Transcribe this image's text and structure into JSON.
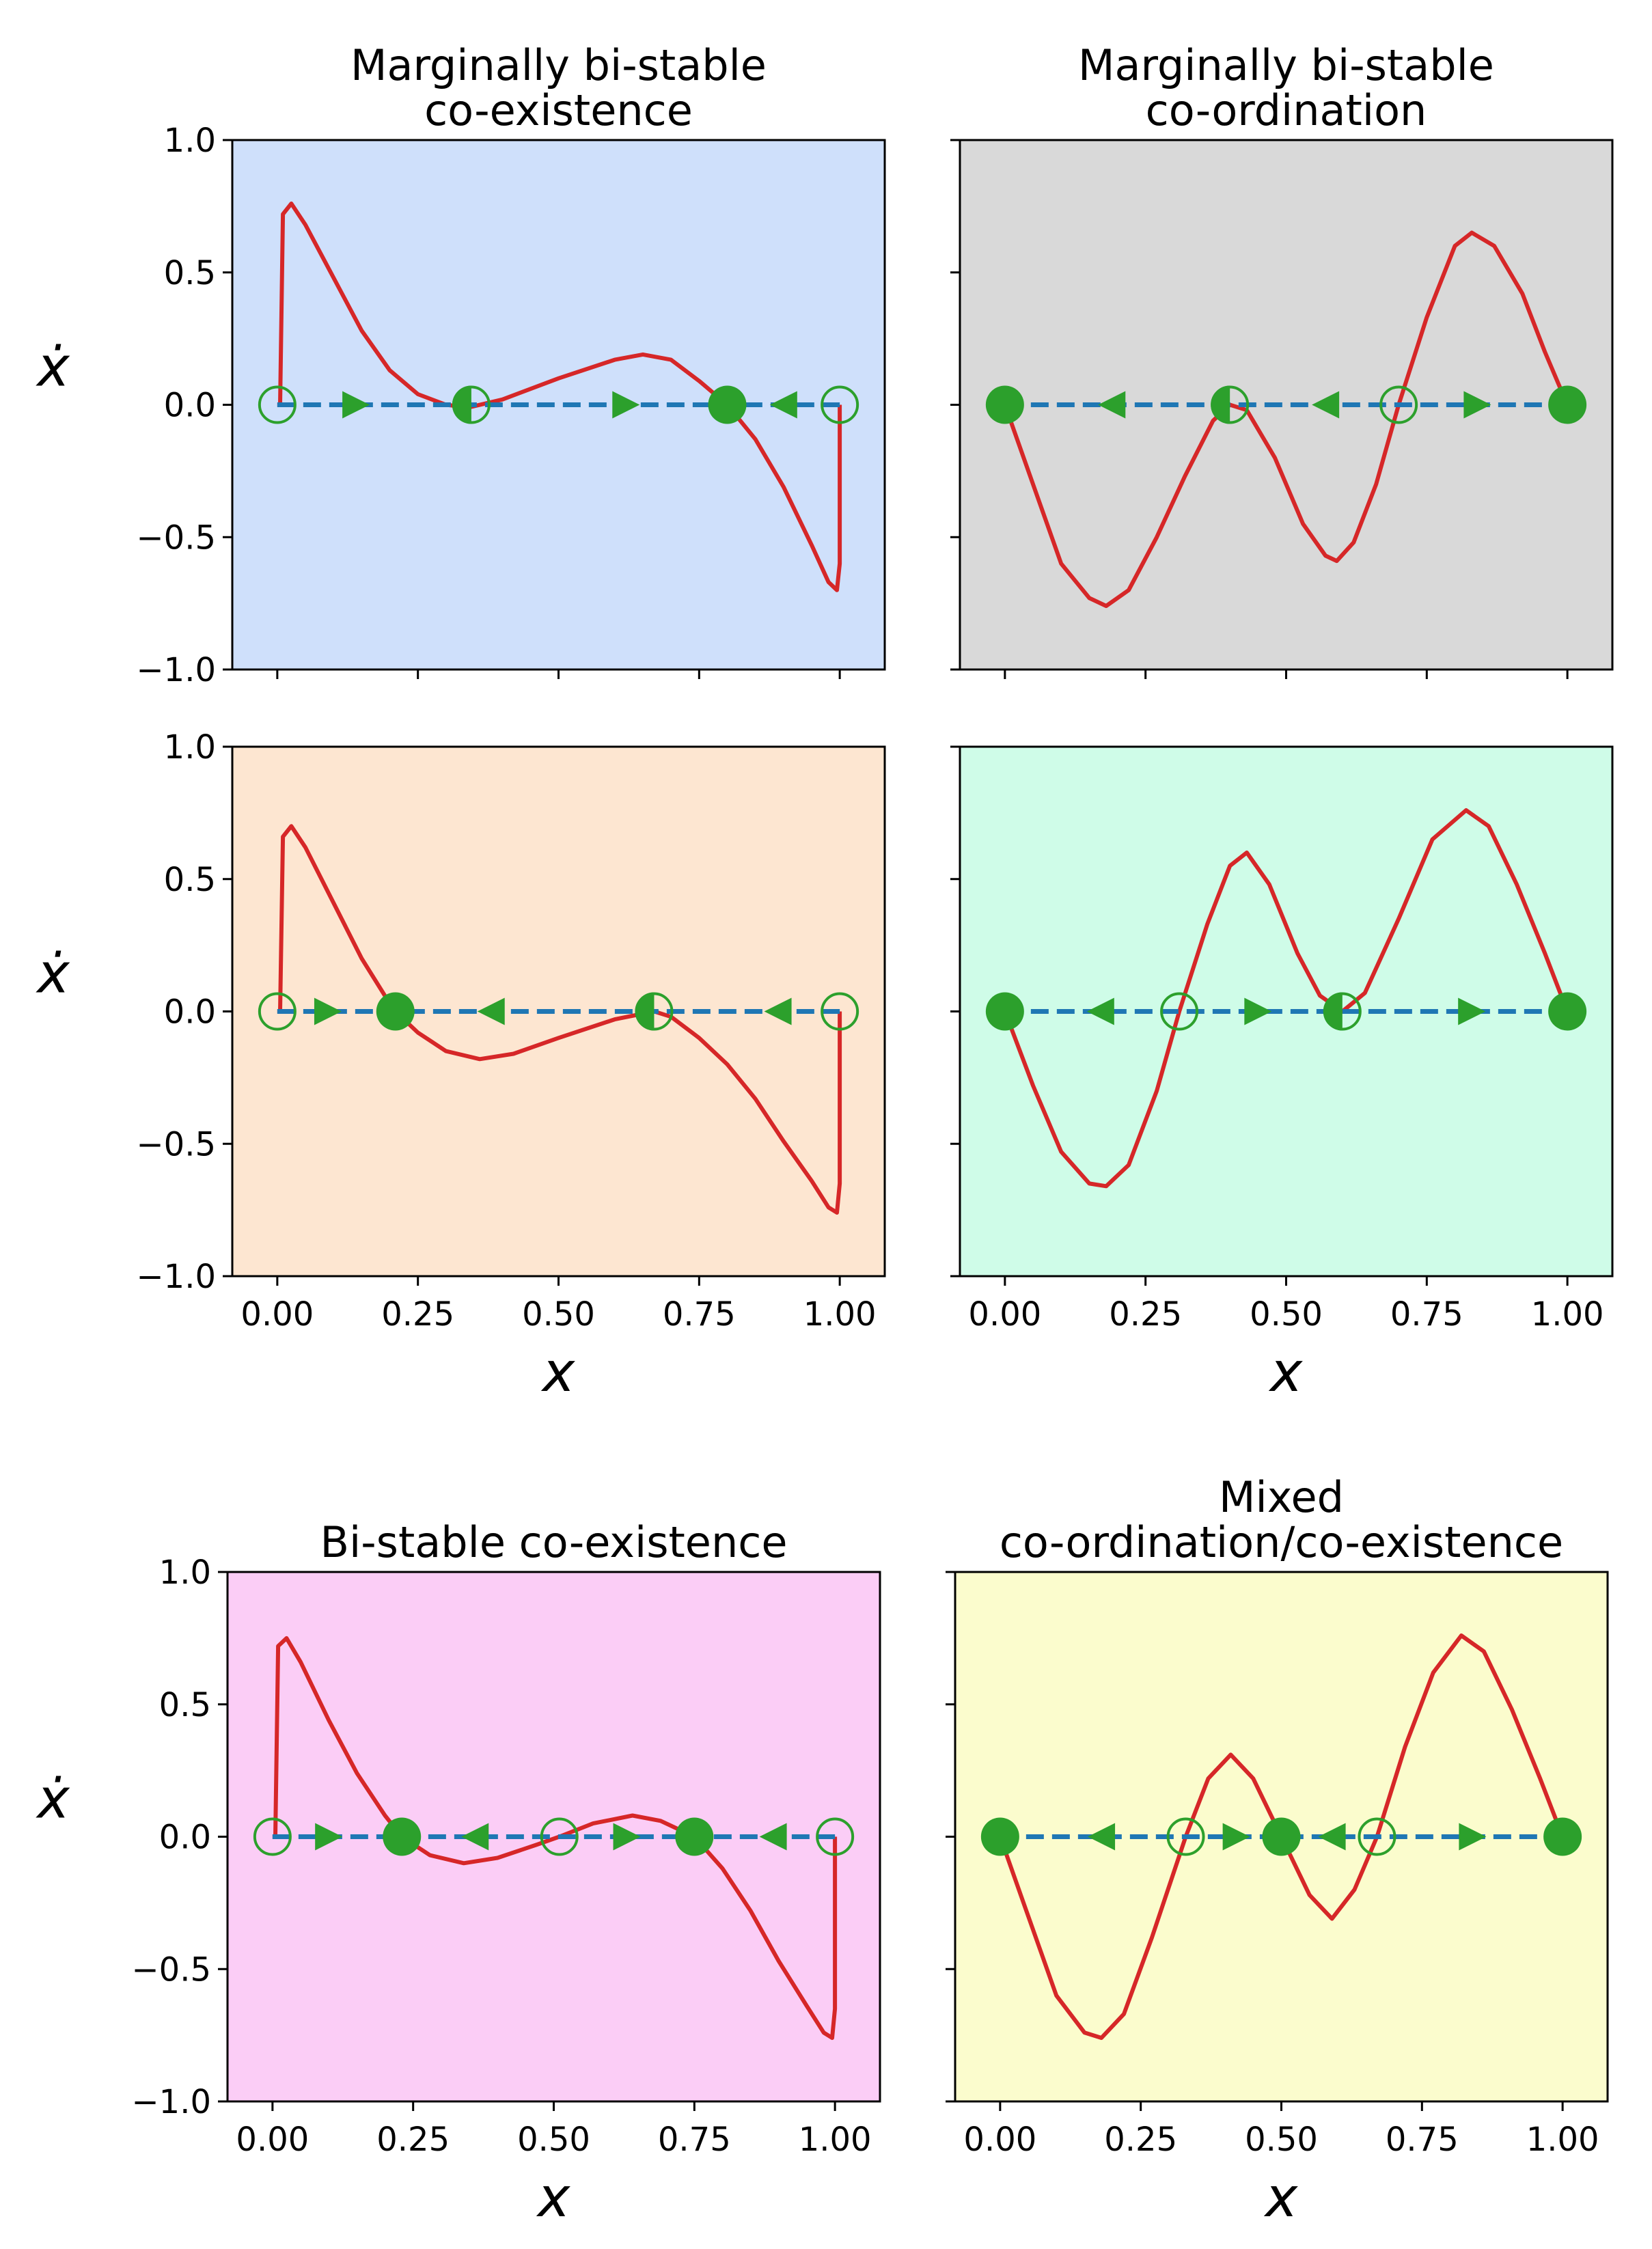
{
  "figure": {
    "description_type": "grid of phase-line plots",
    "colors": {
      "curve": "#d62728",
      "phase_line": "#1f77b4",
      "markers": "#2ca02c",
      "axes": "#000000"
    }
  },
  "chart_data": [
    {
      "type": "line",
      "title": "Marginally bi-stable\nco-existence",
      "title_lines": [
        "Marginally bi-stable",
        "co-existence"
      ],
      "background": "#cfe0fb",
      "xlabel": "",
      "ylabel": "ẋ",
      "xlim": [
        -0.08,
        1.08
      ],
      "ylim": [
        -1.0,
        1.0
      ],
      "xticks": [
        0.0,
        0.25,
        0.5,
        0.75,
        1.0
      ],
      "xtick_labels_visible": false,
      "yticks": [
        -1.0,
        -0.5,
        0.0,
        0.5,
        1.0
      ],
      "ytick_labels": [
        "−1.0",
        "−0.5",
        "0.0",
        "0.5",
        "1.0"
      ],
      "ytick_labels_visible": true,
      "curve": {
        "points": [
          [
            0.0,
            0.0
          ],
          [
            0.005,
            0.0
          ],
          [
            0.01,
            0.72
          ],
          [
            0.025,
            0.76
          ],
          [
            0.05,
            0.68
          ],
          [
            0.1,
            0.48
          ],
          [
            0.15,
            0.28
          ],
          [
            0.2,
            0.13
          ],
          [
            0.25,
            0.04
          ],
          [
            0.3,
            0.0
          ],
          [
            0.34,
            -0.01
          ],
          [
            0.4,
            0.02
          ],
          [
            0.5,
            0.1
          ],
          [
            0.6,
            0.17
          ],
          [
            0.65,
            0.19
          ],
          [
            0.7,
            0.17
          ],
          [
            0.75,
            0.09
          ],
          [
            0.8,
            0.0
          ],
          [
            0.85,
            -0.13
          ],
          [
            0.9,
            -0.31
          ],
          [
            0.95,
            -0.53
          ],
          [
            0.98,
            -0.67
          ],
          [
            0.995,
            -0.7
          ],
          [
            1.0,
            -0.6
          ],
          [
            1.0,
            0.0
          ]
        ]
      },
      "fixed_points": [
        {
          "x": 0.0,
          "style": "open"
        },
        {
          "x": 0.345,
          "style": "half"
        },
        {
          "x": 0.8,
          "style": "filled"
        },
        {
          "x": 1.0,
          "style": "open"
        }
      ],
      "arrows": [
        {
          "x": 0.14,
          "direction": "right"
        },
        {
          "x": 0.62,
          "direction": "right"
        },
        {
          "x": 0.9,
          "direction": "left"
        }
      ]
    },
    {
      "type": "line",
      "title": "Marginally bi-stable\nco-ordination",
      "title_lines": [
        "Marginally bi-stable",
        "co-ordination"
      ],
      "background": "#d9d9d9",
      "xlabel": "",
      "ylabel": "",
      "xlim": [
        -0.08,
        1.08
      ],
      "ylim": [
        -1.0,
        1.0
      ],
      "xticks": [
        0.0,
        0.25,
        0.5,
        0.75,
        1.0
      ],
      "xtick_labels_visible": false,
      "yticks": [
        -1.0,
        -0.5,
        0.0,
        0.5,
        1.0
      ],
      "ytick_labels_visible": false,
      "curve": {
        "points": [
          [
            0.0,
            0.0
          ],
          [
            0.05,
            -0.3
          ],
          [
            0.1,
            -0.6
          ],
          [
            0.15,
            -0.73
          ],
          [
            0.18,
            -0.76
          ],
          [
            0.22,
            -0.7
          ],
          [
            0.27,
            -0.5
          ],
          [
            0.32,
            -0.27
          ],
          [
            0.37,
            -0.06
          ],
          [
            0.4,
            0.0
          ],
          [
            0.43,
            -0.02
          ],
          [
            0.48,
            -0.2
          ],
          [
            0.53,
            -0.45
          ],
          [
            0.57,
            -0.57
          ],
          [
            0.59,
            -0.59
          ],
          [
            0.62,
            -0.52
          ],
          [
            0.66,
            -0.3
          ],
          [
            0.7,
            0.0
          ],
          [
            0.75,
            0.33
          ],
          [
            0.8,
            0.6
          ],
          [
            0.83,
            0.65
          ],
          [
            0.87,
            0.6
          ],
          [
            0.92,
            0.42
          ],
          [
            0.96,
            0.2
          ],
          [
            1.0,
            0.0
          ]
        ]
      },
      "fixed_points": [
        {
          "x": 0.0,
          "style": "filled"
        },
        {
          "x": 0.4,
          "style": "half"
        },
        {
          "x": 0.7,
          "style": "open"
        },
        {
          "x": 1.0,
          "style": "filled"
        }
      ],
      "arrows": [
        {
          "x": 0.19,
          "direction": "left"
        },
        {
          "x": 0.57,
          "direction": "left"
        },
        {
          "x": 0.84,
          "direction": "right"
        }
      ]
    },
    {
      "type": "line",
      "title": "",
      "title_lines": [],
      "background": "#fde6d1",
      "xlabel": "x",
      "ylabel": "ẋ",
      "xlim": [
        -0.08,
        1.08
      ],
      "ylim": [
        -1.0,
        1.0
      ],
      "xticks": [
        0.0,
        0.25,
        0.5,
        0.75,
        1.0
      ],
      "xtick_labels": [
        "0.00",
        "0.25",
        "0.50",
        "0.75",
        "1.00"
      ],
      "xtick_labels_visible": true,
      "yticks": [
        -1.0,
        -0.5,
        0.0,
        0.5,
        1.0
      ],
      "ytick_labels": [
        "−1.0",
        "−0.5",
        "0.0",
        "0.5",
        "1.0"
      ],
      "ytick_labels_visible": true,
      "curve": {
        "points": [
          [
            0.0,
            0.0
          ],
          [
            0.005,
            0.0
          ],
          [
            0.01,
            0.66
          ],
          [
            0.025,
            0.7
          ],
          [
            0.05,
            0.62
          ],
          [
            0.1,
            0.41
          ],
          [
            0.15,
            0.2
          ],
          [
            0.2,
            0.03
          ],
          [
            0.21,
            0.0
          ],
          [
            0.25,
            -0.08
          ],
          [
            0.3,
            -0.15
          ],
          [
            0.36,
            -0.18
          ],
          [
            0.42,
            -0.16
          ],
          [
            0.5,
            -0.1
          ],
          [
            0.6,
            -0.03
          ],
          [
            0.67,
            0.0
          ],
          [
            0.7,
            -0.02
          ],
          [
            0.75,
            -0.1
          ],
          [
            0.8,
            -0.2
          ],
          [
            0.85,
            -0.33
          ],
          [
            0.9,
            -0.49
          ],
          [
            0.95,
            -0.64
          ],
          [
            0.98,
            -0.74
          ],
          [
            0.995,
            -0.76
          ],
          [
            1.0,
            -0.65
          ],
          [
            1.0,
            0.0
          ]
        ]
      },
      "fixed_points": [
        {
          "x": 0.0,
          "style": "open"
        },
        {
          "x": 0.21,
          "style": "filled"
        },
        {
          "x": 0.67,
          "style": "half"
        },
        {
          "x": 1.0,
          "style": "open"
        }
      ],
      "arrows": [
        {
          "x": 0.09,
          "direction": "right"
        },
        {
          "x": 0.38,
          "direction": "left"
        },
        {
          "x": 0.89,
          "direction": "left"
        }
      ]
    },
    {
      "type": "line",
      "title": "",
      "title_lines": [],
      "background": "#cffce8",
      "xlabel": "x",
      "ylabel": "",
      "xlim": [
        -0.08,
        1.08
      ],
      "ylim": [
        -1.0,
        1.0
      ],
      "xticks": [
        0.0,
        0.25,
        0.5,
        0.75,
        1.0
      ],
      "xtick_labels": [
        "0.00",
        "0.25",
        "0.50",
        "0.75",
        "1.00"
      ],
      "xtick_labels_visible": true,
      "yticks": [
        -1.0,
        -0.5,
        0.0,
        0.5,
        1.0
      ],
      "ytick_labels_visible": false,
      "curve": {
        "points": [
          [
            0.0,
            0.0
          ],
          [
            0.05,
            -0.28
          ],
          [
            0.1,
            -0.53
          ],
          [
            0.15,
            -0.65
          ],
          [
            0.18,
            -0.66
          ],
          [
            0.22,
            -0.58
          ],
          [
            0.27,
            -0.3
          ],
          [
            0.31,
            0.0
          ],
          [
            0.36,
            0.33
          ],
          [
            0.4,
            0.55
          ],
          [
            0.43,
            0.6
          ],
          [
            0.47,
            0.48
          ],
          [
            0.52,
            0.22
          ],
          [
            0.56,
            0.06
          ],
          [
            0.6,
            0.0
          ],
          [
            0.64,
            0.07
          ],
          [
            0.7,
            0.35
          ],
          [
            0.76,
            0.65
          ],
          [
            0.82,
            0.76
          ],
          [
            0.86,
            0.7
          ],
          [
            0.91,
            0.48
          ],
          [
            0.96,
            0.22
          ],
          [
            1.0,
            0.0
          ]
        ]
      },
      "fixed_points": [
        {
          "x": 0.0,
          "style": "filled"
        },
        {
          "x": 0.31,
          "style": "open"
        },
        {
          "x": 0.6,
          "style": "half"
        },
        {
          "x": 1.0,
          "style": "filled"
        }
      ],
      "arrows": [
        {
          "x": 0.17,
          "direction": "left"
        },
        {
          "x": 0.45,
          "direction": "right"
        },
        {
          "x": 0.83,
          "direction": "right"
        }
      ]
    },
    {
      "type": "line",
      "title": "Bi-stable co-existence",
      "title_lines": [
        "Bi-stable co-existence"
      ],
      "background": "#fbcdf6",
      "xlabel": "x",
      "ylabel": "ẋ",
      "xlim": [
        -0.08,
        1.08
      ],
      "ylim": [
        -1.0,
        1.0
      ],
      "xticks": [
        0.0,
        0.25,
        0.5,
        0.75,
        1.0
      ],
      "xtick_labels": [
        "0.00",
        "0.25",
        "0.50",
        "0.75",
        "1.00"
      ],
      "xtick_labels_visible": true,
      "yticks": [
        -1.0,
        -0.5,
        0.0,
        0.5,
        1.0
      ],
      "ytick_labels": [
        "−1.0",
        "−0.5",
        "0.0",
        "0.5",
        "1.0"
      ],
      "ytick_labels_visible": true,
      "curve": {
        "points": [
          [
            0.0,
            0.0
          ],
          [
            0.005,
            0.0
          ],
          [
            0.01,
            0.72
          ],
          [
            0.025,
            0.75
          ],
          [
            0.05,
            0.66
          ],
          [
            0.1,
            0.44
          ],
          [
            0.15,
            0.24
          ],
          [
            0.2,
            0.08
          ],
          [
            0.23,
            0.0
          ],
          [
            0.28,
            -0.07
          ],
          [
            0.34,
            -0.1
          ],
          [
            0.4,
            -0.08
          ],
          [
            0.47,
            -0.03
          ],
          [
            0.51,
            0.0
          ],
          [
            0.57,
            0.05
          ],
          [
            0.64,
            0.08
          ],
          [
            0.69,
            0.06
          ],
          [
            0.75,
            0.0
          ],
          [
            0.8,
            -0.12
          ],
          [
            0.85,
            -0.28
          ],
          [
            0.9,
            -0.47
          ],
          [
            0.95,
            -0.64
          ],
          [
            0.98,
            -0.74
          ],
          [
            0.995,
            -0.76
          ],
          [
            1.0,
            -0.65
          ],
          [
            1.0,
            0.0
          ]
        ]
      },
      "fixed_points": [
        {
          "x": 0.0,
          "style": "open"
        },
        {
          "x": 0.23,
          "style": "filled"
        },
        {
          "x": 0.51,
          "style": "open"
        },
        {
          "x": 0.75,
          "style": "filled"
        },
        {
          "x": 1.0,
          "style": "open"
        }
      ],
      "arrows": [
        {
          "x": 0.1,
          "direction": "right"
        },
        {
          "x": 0.36,
          "direction": "left"
        },
        {
          "x": 0.63,
          "direction": "right"
        },
        {
          "x": 0.89,
          "direction": "left"
        }
      ]
    },
    {
      "type": "line",
      "title": "Mixed\nco-ordination/co-existence",
      "title_lines": [
        "Mixed",
        "co-ordination/co-existence"
      ],
      "background": "#fbfccd",
      "xlabel": "x",
      "ylabel": "",
      "xlim": [
        -0.08,
        1.08
      ],
      "ylim": [
        -1.0,
        1.0
      ],
      "xticks": [
        0.0,
        0.25,
        0.5,
        0.75,
        1.0
      ],
      "xtick_labels": [
        "0.00",
        "0.25",
        "0.50",
        "0.75",
        "1.00"
      ],
      "xtick_labels_visible": true,
      "yticks": [
        -1.0,
        -0.5,
        0.0,
        0.5,
        1.0
      ],
      "ytick_labels_visible": false,
      "curve": {
        "points": [
          [
            0.0,
            0.0
          ],
          [
            0.05,
            -0.3
          ],
          [
            0.1,
            -0.6
          ],
          [
            0.15,
            -0.74
          ],
          [
            0.18,
            -0.76
          ],
          [
            0.22,
            -0.67
          ],
          [
            0.27,
            -0.38
          ],
          [
            0.33,
            0.0
          ],
          [
            0.37,
            0.22
          ],
          [
            0.41,
            0.31
          ],
          [
            0.45,
            0.22
          ],
          [
            0.5,
            0.0
          ],
          [
            0.55,
            -0.22
          ],
          [
            0.59,
            -0.31
          ],
          [
            0.63,
            -0.2
          ],
          [
            0.67,
            0.0
          ],
          [
            0.72,
            0.34
          ],
          [
            0.77,
            0.62
          ],
          [
            0.82,
            0.76
          ],
          [
            0.86,
            0.7
          ],
          [
            0.91,
            0.48
          ],
          [
            0.96,
            0.22
          ],
          [
            1.0,
            0.0
          ]
        ]
      },
      "fixed_points": [
        {
          "x": 0.0,
          "style": "filled"
        },
        {
          "x": 0.33,
          "style": "open"
        },
        {
          "x": 0.5,
          "style": "filled"
        },
        {
          "x": 0.67,
          "style": "open"
        },
        {
          "x": 1.0,
          "style": "filled"
        }
      ],
      "arrows": [
        {
          "x": 0.18,
          "direction": "left"
        },
        {
          "x": 0.42,
          "direction": "right"
        },
        {
          "x": 0.59,
          "direction": "left"
        },
        {
          "x": 0.84,
          "direction": "right"
        }
      ]
    }
  ]
}
